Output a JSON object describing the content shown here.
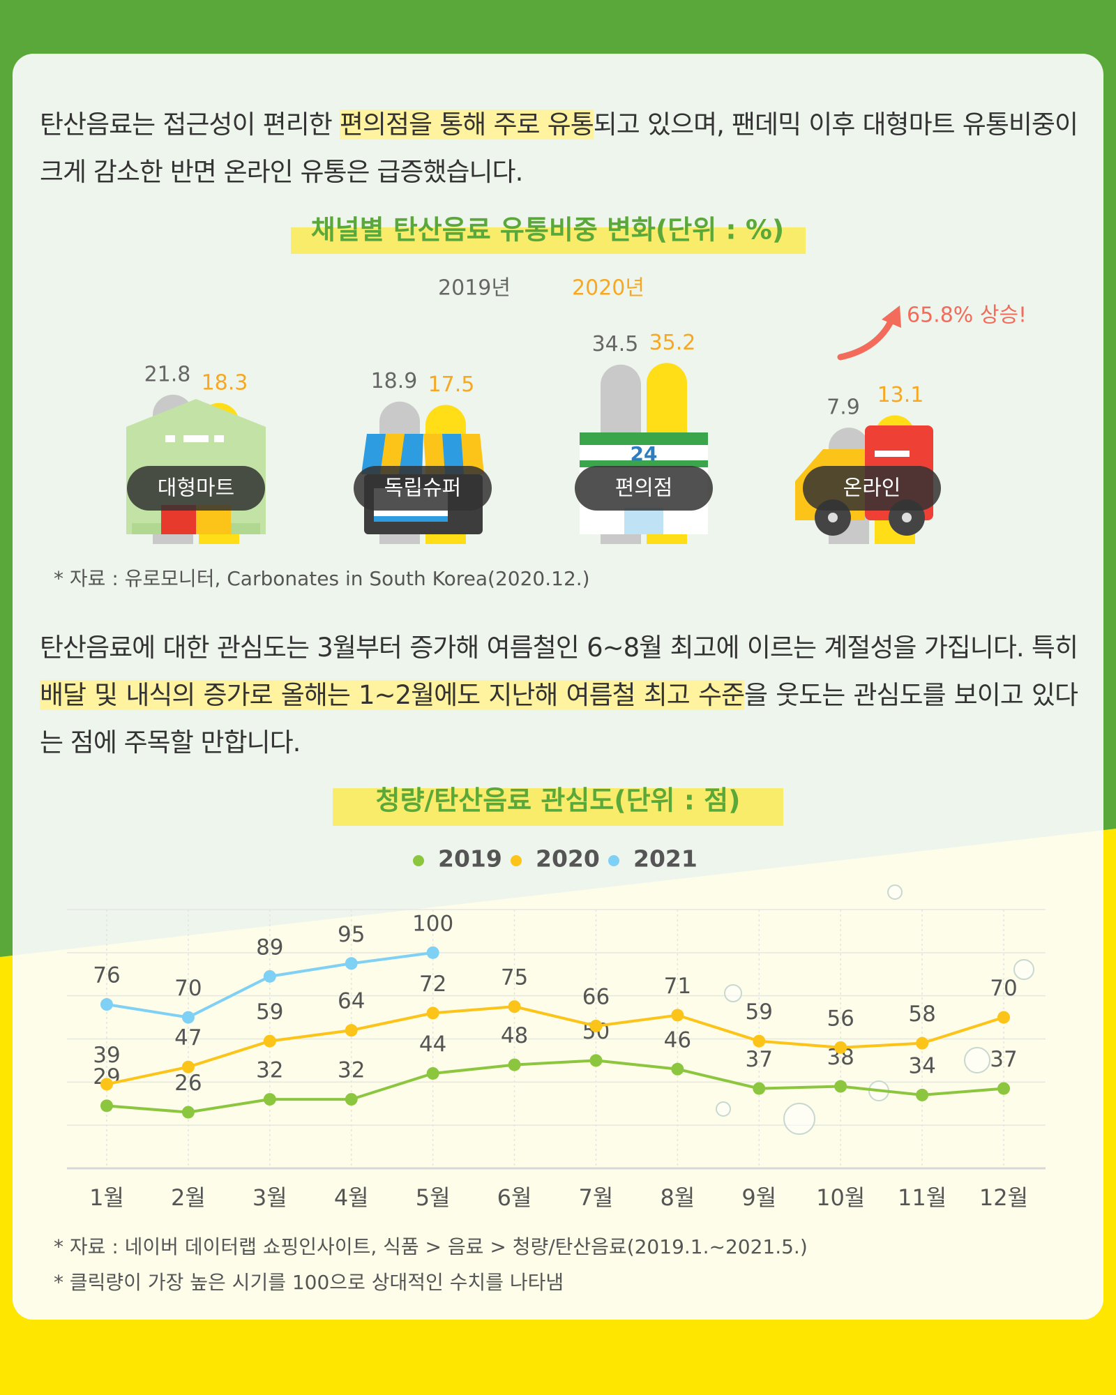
{
  "paragraph1": {
    "before": "탄산음료는 접근성이 편리한 ",
    "highlight": "편의점을 통해 주로 유통",
    "after": "되고 있으며, 팬데믹 이후 대형마트 유통비중이 크게 감소한 반면 온라인 유통은 급증했습니다."
  },
  "paragraph2": {
    "before": "탄산음료에 대한 관심도는 3월부터 증가해 여름철인 6~8월 최고에 이르는 계절성을 가집니다. 특히 ",
    "highlight": "배달 및 내식의 증가로 올해는 1~2월에도 지난해 여름철 최고 수준",
    "after": "을 웃도는 관심도를 보이고 있다는 점에 주목할 만합니다."
  },
  "store_sign": "24",
  "chart_data": [
    {
      "type": "bar",
      "title": "채널별 탄산음료 유통비중 변화(단위 : %)",
      "categories": [
        "대형마트",
        "독립슈퍼",
        "편의점",
        "온라인"
      ],
      "series": [
        {
          "name": "2019년",
          "color": "#c9c9c9",
          "label_color": "#666666",
          "values": [
            21.8,
            18.9,
            34.5,
            7.9
          ]
        },
        {
          "name": "2020년",
          "color": "#ffde17",
          "label_color": "#f7a823",
          "values": [
            18.3,
            17.5,
            35.2,
            13.1
          ]
        }
      ],
      "annotation": "65.8% 상승!",
      "source": "* 자료 : 유로모니터,  Carbonates in South Korea(2020.12.)"
    },
    {
      "type": "line",
      "title": "청량/탄산음료 관심도(단위 : 점)",
      "categories": [
        "1월",
        "2월",
        "3월",
        "4월",
        "5월",
        "6월",
        "7월",
        "8월",
        "9월",
        "10월",
        "11월",
        "12월"
      ],
      "series": [
        {
          "name": "2019",
          "color": "#8cc63f",
          "values": [
            29,
            26,
            32,
            32,
            44,
            48,
            50,
            46,
            37,
            38,
            34,
            37
          ]
        },
        {
          "name": "2020",
          "color": "#fcc419",
          "values": [
            39,
            47,
            59,
            64,
            72,
            75,
            66,
            71,
            59,
            56,
            58,
            70
          ]
        },
        {
          "name": "2021",
          "color": "#7fd0f5",
          "values": [
            76,
            70,
            89,
            95,
            100,
            null,
            null,
            null,
            null,
            null,
            null,
            null
          ]
        }
      ],
      "ylim": [
        0,
        120
      ],
      "yticks": [
        0,
        20,
        40,
        60,
        80,
        100,
        120
      ],
      "grid": true,
      "ytick_labels": false,
      "sources": [
        "* 자료 : 네이버 데이터랩 쇼핑인사이트, 식품 > 음료 > 청량/탄산음료(2019.1.~2021.5.)",
        "* 클릭량이 가장 높은 시기를 100으로 상대적인 수치를 나타냄"
      ]
    }
  ]
}
